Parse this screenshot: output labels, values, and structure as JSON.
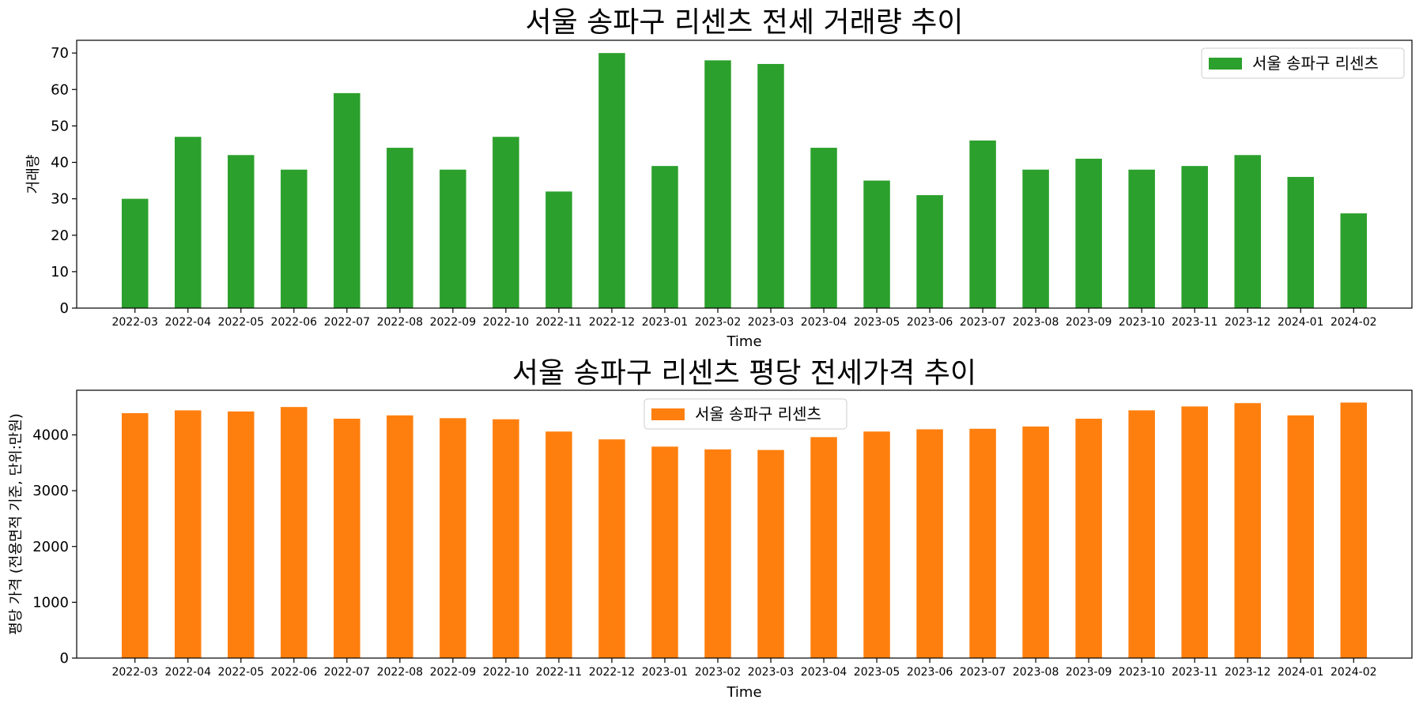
{
  "chart_data": [
    {
      "type": "bar",
      "title": "서울 송파구 리센츠 전세 거래량 추이",
      "xlabel": "Time",
      "ylabel": "거래량",
      "categories": [
        "2022-03",
        "2022-04",
        "2022-05",
        "2022-06",
        "2022-07",
        "2022-08",
        "2022-09",
        "2022-10",
        "2022-11",
        "2022-12",
        "2023-01",
        "2023-02",
        "2023-03",
        "2023-04",
        "2023-05",
        "2023-06",
        "2023-07",
        "2023-08",
        "2023-09",
        "2023-10",
        "2023-11",
        "2023-12",
        "2024-01",
        "2024-02"
      ],
      "series": [
        {
          "name": "서울 송파구 리센츠",
          "color": "#2ca02c",
          "values": [
            30,
            47,
            42,
            38,
            59,
            44,
            38,
            47,
            32,
            70,
            39,
            68,
            67,
            44,
            35,
            31,
            46,
            38,
            41,
            38,
            39,
            42,
            36,
            26
          ]
        }
      ],
      "ylim": [
        0,
        73.5
      ],
      "yticks": [
        0,
        10,
        20,
        30,
        40,
        50,
        60,
        70
      ],
      "grid": false,
      "legend_position": "upper right"
    },
    {
      "type": "bar",
      "title": "서울 송파구 리센츠 평당 전세가격 추이",
      "xlabel": "Time",
      "ylabel": "평당 가격 (전용면적 기준, 단위:만원)",
      "categories": [
        "2022-03",
        "2022-04",
        "2022-05",
        "2022-06",
        "2022-07",
        "2022-08",
        "2022-09",
        "2022-10",
        "2022-11",
        "2022-12",
        "2023-01",
        "2023-02",
        "2023-03",
        "2023-04",
        "2023-05",
        "2023-06",
        "2023-07",
        "2023-08",
        "2023-09",
        "2023-10",
        "2023-11",
        "2023-12",
        "2024-01",
        "2024-02"
      ],
      "series": [
        {
          "name": "서울 송파구 리센츠",
          "color": "#ff7f0e",
          "values": [
            4390,
            4440,
            4420,
            4500,
            4290,
            4350,
            4300,
            4280,
            4060,
            3920,
            3790,
            3740,
            3730,
            3960,
            4060,
            4100,
            4110,
            4150,
            4290,
            4440,
            4510,
            4570,
            4350,
            4580
          ]
        }
      ],
      "ylim": [
        0,
        4800
      ],
      "yticks": [
        0,
        1000,
        2000,
        3000,
        4000
      ],
      "grid": false,
      "legend_position": "upper center"
    }
  ]
}
